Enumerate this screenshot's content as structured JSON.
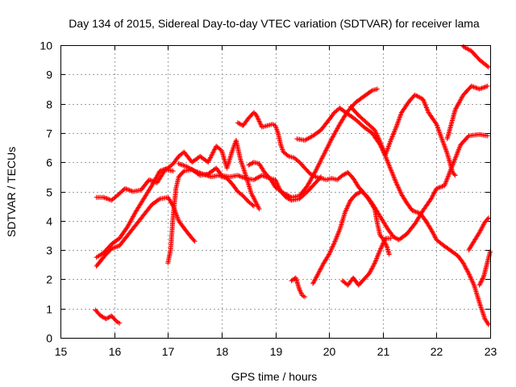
{
  "chart_data": {
    "type": "scatter",
    "title": "Day 134 of 2015, Sidereal Day-to-day VTEC variation (SDTVAR) for receiver lama",
    "xlabel": "GPS time / hours",
    "ylabel": "SDTVAR / TECUs",
    "xlim": [
      15,
      23
    ],
    "ylim": [
      0,
      10
    ],
    "x_ticks": [
      "15",
      "16",
      "17",
      "18",
      "19",
      "20",
      "21",
      "22",
      "23"
    ],
    "y_ticks": [
      "0",
      "1",
      "2",
      "3",
      "4",
      "5",
      "6",
      "7",
      "8",
      "9",
      "10"
    ],
    "grid": true,
    "marker": "plus",
    "color": "#ff0000",
    "series": [
      {
        "name": "track-1",
        "points": [
          [
            15.67,
            2.45
          ],
          [
            15.8,
            2.75
          ],
          [
            15.95,
            3.05
          ],
          [
            16.1,
            3.15
          ],
          [
            16.25,
            3.5
          ],
          [
            16.4,
            3.85
          ],
          [
            16.55,
            4.2
          ],
          [
            16.7,
            4.55
          ],
          [
            16.85,
            4.75
          ],
          [
            17.0,
            4.8
          ],
          [
            17.1,
            4.5
          ],
          [
            17.2,
            4.0
          ],
          [
            17.3,
            3.75
          ],
          [
            17.45,
            3.4
          ],
          [
            17.5,
            3.3
          ]
        ]
      },
      {
        "name": "track-2",
        "points": [
          [
            15.67,
            2.75
          ],
          [
            15.8,
            2.9
          ],
          [
            15.95,
            3.2
          ],
          [
            16.1,
            3.4
          ],
          [
            16.25,
            3.8
          ],
          [
            16.4,
            4.3
          ],
          [
            16.55,
            4.75
          ],
          [
            16.7,
            5.2
          ],
          [
            16.85,
            5.7
          ],
          [
            17.0,
            5.8
          ],
          [
            17.1,
            5.95
          ],
          [
            17.2,
            6.2
          ],
          [
            17.3,
            6.35
          ],
          [
            17.45,
            6.0
          ],
          [
            17.6,
            6.2
          ],
          [
            17.75,
            6.0
          ],
          [
            17.9,
            6.55
          ],
          [
            18.0,
            6.4
          ],
          [
            18.1,
            5.8
          ],
          [
            18.2,
            6.4
          ],
          [
            18.27,
            6.75
          ],
          [
            18.35,
            6.1
          ],
          [
            18.45,
            5.55
          ],
          [
            18.55,
            4.95
          ],
          [
            18.7,
            4.4
          ]
        ]
      },
      {
        "name": "track-3",
        "points": [
          [
            15.67,
            4.8
          ],
          [
            15.8,
            4.8
          ],
          [
            15.95,
            4.7
          ],
          [
            16.05,
            4.85
          ],
          [
            16.2,
            5.1
          ],
          [
            16.35,
            5.0
          ],
          [
            16.5,
            5.05
          ],
          [
            16.65,
            5.4
          ],
          [
            16.8,
            5.3
          ],
          [
            16.95,
            5.75
          ],
          [
            17.1,
            5.7
          ]
        ]
      },
      {
        "name": "track-4",
        "points": [
          [
            17.0,
            2.55
          ],
          [
            17.05,
            3.0
          ],
          [
            17.1,
            4.2
          ],
          [
            17.15,
            5.1
          ],
          [
            17.2,
            5.5
          ],
          [
            17.3,
            5.7
          ],
          [
            17.45,
            5.75
          ],
          [
            17.6,
            5.55
          ],
          [
            17.75,
            5.6
          ],
          [
            17.9,
            5.8
          ],
          [
            18.0,
            5.55
          ],
          [
            18.15,
            5.5
          ],
          [
            18.3,
            5.55
          ],
          [
            18.45,
            5.45
          ],
          [
            18.6,
            5.4
          ],
          [
            18.75,
            5.55
          ],
          [
            18.9,
            5.45
          ],
          [
            19.0,
            5.15
          ],
          [
            19.15,
            4.95
          ],
          [
            19.3,
            4.8
          ],
          [
            19.45,
            4.85
          ],
          [
            19.6,
            5.2
          ],
          [
            19.75,
            5.7
          ],
          [
            19.9,
            6.25
          ],
          [
            20.05,
            6.8
          ],
          [
            20.2,
            7.3
          ],
          [
            20.35,
            7.75
          ],
          [
            20.5,
            8.05
          ],
          [
            20.65,
            8.25
          ],
          [
            20.8,
            8.45
          ],
          [
            20.9,
            8.5
          ]
        ]
      },
      {
        "name": "track-5",
        "points": [
          [
            17.2,
            5.95
          ],
          [
            17.35,
            5.85
          ],
          [
            17.5,
            5.7
          ],
          [
            17.65,
            5.6
          ],
          [
            17.8,
            5.5
          ],
          [
            17.95,
            5.55
          ],
          [
            18.1,
            5.45
          ],
          [
            18.2,
            5.25
          ],
          [
            18.3,
            5.0
          ],
          [
            18.4,
            4.85
          ],
          [
            18.5,
            4.65
          ],
          [
            18.6,
            4.5
          ]
        ]
      },
      {
        "name": "track-6",
        "points": [
          [
            18.3,
            7.35
          ],
          [
            18.4,
            7.25
          ],
          [
            18.5,
            7.5
          ],
          [
            18.6,
            7.7
          ],
          [
            18.65,
            7.6
          ],
          [
            18.75,
            7.2
          ],
          [
            18.85,
            7.25
          ],
          [
            18.95,
            7.3
          ],
          [
            19.0,
            7.25
          ],
          [
            19.05,
            7.0
          ],
          [
            19.1,
            6.6
          ],
          [
            19.15,
            6.35
          ],
          [
            19.25,
            6.2
          ],
          [
            19.35,
            6.15
          ],
          [
            19.45,
            6.0
          ],
          [
            19.55,
            5.8
          ],
          [
            19.65,
            5.6
          ],
          [
            19.75,
            5.5
          ],
          [
            19.85,
            5.45
          ],
          [
            19.95,
            5.4
          ],
          [
            20.05,
            5.45
          ],
          [
            20.15,
            5.4
          ],
          [
            20.25,
            5.55
          ],
          [
            20.35,
            5.65
          ],
          [
            20.45,
            5.45
          ],
          [
            20.55,
            5.15
          ],
          [
            20.65,
            4.95
          ],
          [
            20.75,
            4.7
          ],
          [
            20.85,
            4.4
          ],
          [
            20.9,
            3.9
          ],
          [
            20.95,
            3.5
          ],
          [
            21.0,
            3.4
          ],
          [
            21.08,
            3.1
          ],
          [
            21.12,
            2.85
          ]
        ]
      },
      {
        "name": "track-7",
        "points": [
          [
            18.5,
            5.9
          ],
          [
            18.6,
            6.0
          ],
          [
            18.7,
            5.95
          ],
          [
            18.8,
            5.65
          ],
          [
            18.9,
            5.45
          ],
          [
            19.0,
            5.4
          ],
          [
            19.1,
            5.0
          ],
          [
            19.2,
            4.8
          ],
          [
            19.3,
            4.7
          ],
          [
            19.45,
            4.75
          ],
          [
            19.6,
            5.0
          ],
          [
            19.75,
            5.3
          ],
          [
            19.85,
            5.5
          ]
        ]
      },
      {
        "name": "track-8",
        "points": [
          [
            19.4,
            6.8
          ],
          [
            19.55,
            6.75
          ],
          [
            19.7,
            6.9
          ],
          [
            19.85,
            7.1
          ],
          [
            20.0,
            7.45
          ],
          [
            20.1,
            7.7
          ],
          [
            20.2,
            7.85
          ],
          [
            20.35,
            7.65
          ],
          [
            20.5,
            7.45
          ],
          [
            20.65,
            7.2
          ],
          [
            20.8,
            7.0
          ],
          [
            20.95,
            6.6
          ],
          [
            21.05,
            6.2
          ],
          [
            21.15,
            5.75
          ],
          [
            21.25,
            5.3
          ],
          [
            21.35,
            4.9
          ],
          [
            21.45,
            4.6
          ],
          [
            21.55,
            4.35
          ],
          [
            21.7,
            4.25
          ],
          [
            21.8,
            4.0
          ],
          [
            21.9,
            3.7
          ],
          [
            22.0,
            3.35
          ],
          [
            22.1,
            3.2
          ],
          [
            22.25,
            3.0
          ],
          [
            22.4,
            2.8
          ],
          [
            22.5,
            2.55
          ],
          [
            22.6,
            2.2
          ],
          [
            22.7,
            1.8
          ],
          [
            22.8,
            1.2
          ],
          [
            22.9,
            0.65
          ],
          [
            22.97,
            0.45
          ]
        ]
      },
      {
        "name": "track-9",
        "points": [
          [
            19.7,
            1.85
          ],
          [
            19.8,
            2.2
          ],
          [
            19.9,
            2.55
          ],
          [
            20.0,
            2.85
          ],
          [
            20.1,
            3.25
          ],
          [
            20.2,
            3.7
          ],
          [
            20.3,
            4.3
          ],
          [
            20.4,
            4.7
          ],
          [
            20.5,
            4.9
          ],
          [
            20.6,
            5.0
          ],
          [
            20.7,
            4.85
          ],
          [
            20.8,
            4.6
          ],
          [
            20.9,
            4.3
          ],
          [
            21.0,
            4.0
          ],
          [
            21.1,
            3.7
          ],
          [
            21.2,
            3.45
          ],
          [
            21.3,
            3.35
          ],
          [
            21.45,
            3.55
          ],
          [
            21.6,
            3.9
          ],
          [
            21.75,
            4.35
          ],
          [
            21.9,
            4.75
          ],
          [
            22.0,
            5.1
          ],
          [
            22.15,
            5.2
          ],
          [
            22.3,
            5.9
          ],
          [
            22.45,
            6.6
          ],
          [
            22.6,
            6.9
          ],
          [
            22.8,
            6.95
          ],
          [
            22.95,
            6.9
          ]
        ]
      },
      {
        "name": "track-10",
        "points": [
          [
            20.25,
            1.95
          ],
          [
            20.35,
            1.8
          ],
          [
            20.45,
            2.05
          ],
          [
            20.55,
            1.8
          ],
          [
            20.65,
            2.0
          ],
          [
            20.75,
            2.2
          ],
          [
            20.85,
            2.55
          ],
          [
            20.95,
            3.0
          ],
          [
            21.05,
            3.4
          ],
          [
            21.15,
            3.4
          ]
        ]
      },
      {
        "name": "track-11",
        "points": [
          [
            20.4,
            7.9
          ],
          [
            20.55,
            7.6
          ],
          [
            20.7,
            7.35
          ],
          [
            20.85,
            7.1
          ],
          [
            20.95,
            6.7
          ],
          [
            21.05,
            6.25
          ],
          [
            21.15,
            6.75
          ],
          [
            21.25,
            7.2
          ],
          [
            21.35,
            7.7
          ],
          [
            21.5,
            8.1
          ],
          [
            21.6,
            8.3
          ],
          [
            21.75,
            8.15
          ],
          [
            21.85,
            7.7
          ],
          [
            22.0,
            7.3
          ],
          [
            22.1,
            6.8
          ],
          [
            22.2,
            6.3
          ],
          [
            22.3,
            5.65
          ],
          [
            22.35,
            5.55
          ]
        ]
      },
      {
        "name": "track-12",
        "points": [
          [
            22.2,
            6.8
          ],
          [
            22.35,
            7.8
          ],
          [
            22.5,
            8.3
          ],
          [
            22.65,
            8.6
          ],
          [
            22.8,
            8.5
          ],
          [
            22.95,
            8.6
          ]
        ]
      },
      {
        "name": "track-13",
        "points": [
          [
            22.5,
            9.95
          ],
          [
            22.65,
            9.8
          ],
          [
            22.8,
            9.5
          ],
          [
            22.97,
            9.25
          ]
        ]
      },
      {
        "name": "track-14",
        "points": [
          [
            22.6,
            3.0
          ],
          [
            22.7,
            3.3
          ],
          [
            22.8,
            3.6
          ],
          [
            22.9,
            3.95
          ],
          [
            22.97,
            4.1
          ]
        ]
      },
      {
        "name": "track-15",
        "points": [
          [
            22.8,
            1.8
          ],
          [
            22.88,
            2.1
          ],
          [
            22.95,
            2.6
          ],
          [
            23.0,
            2.95
          ]
        ]
      },
      {
        "name": "track-16",
        "points": [
          [
            15.65,
            0.95
          ],
          [
            15.75,
            0.75
          ],
          [
            15.85,
            0.65
          ],
          [
            15.95,
            0.75
          ],
          [
            16.05,
            0.55
          ],
          [
            16.1,
            0.5
          ]
        ]
      },
      {
        "name": "track-17",
        "points": [
          [
            19.3,
            1.95
          ],
          [
            19.38,
            2.05
          ],
          [
            19.45,
            1.65
          ],
          [
            19.5,
            1.45
          ],
          [
            19.55,
            1.4
          ]
        ]
      }
    ]
  }
}
